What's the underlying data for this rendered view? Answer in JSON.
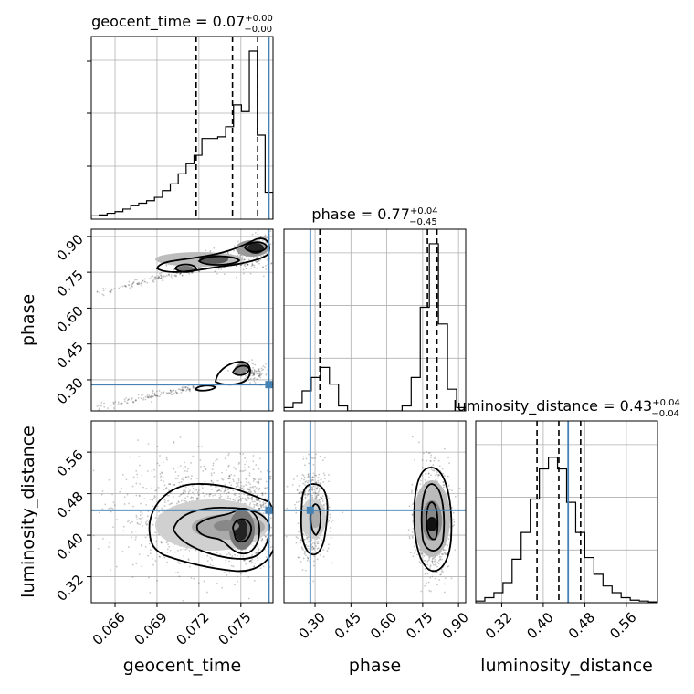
{
  "chart_data": {
    "type": "corner",
    "parameters": [
      {
        "name": "geocent_time",
        "title_value": "0.07",
        "err_plus": "+0.00",
        "err_minus": "−0.00",
        "range": [
          0.0643,
          0.0773
        ],
        "ticks": [
          "0.066",
          "0.069",
          "0.072",
          "0.075"
        ],
        "tick_values": [
          0.066,
          0.069,
          0.072,
          0.075
        ],
        "truth": 0.07715,
        "quantile_lines": [
          0.0718,
          0.0744,
          0.0762
        ],
        "hist_bins": 23,
        "hist_counts": [
          0.02,
          0.025,
          0.035,
          0.045,
          0.06,
          0.08,
          0.095,
          0.11,
          0.13,
          0.17,
          0.21,
          0.27,
          0.33,
          0.38,
          0.48,
          0.48,
          0.49,
          0.55,
          0.68,
          0.64,
          1.0,
          0.5,
          0.16
        ]
      },
      {
        "name": "phase",
        "title_value": "0.77",
        "err_plus": "+0.04",
        "err_minus": "−0.45",
        "range": [
          0.17,
          0.93
        ],
        "ticks": [
          "0.30",
          "0.45",
          "0.60",
          "0.75",
          "0.90"
        ],
        "tick_values": [
          0.3,
          0.45,
          0.6,
          0.75,
          0.9
        ],
        "truth": 0.28,
        "quantile_lines": [
          0.32,
          0.77,
          0.81
        ],
        "hist_bins": 20,
        "hist_counts": [
          0.02,
          0.05,
          0.12,
          0.2,
          0.26,
          0.16,
          0.03,
          0.0,
          0.0,
          0.0,
          0.0,
          0.0,
          0.0,
          0.03,
          0.2,
          0.62,
          1.0,
          0.52,
          0.13,
          0.02
        ]
      },
      {
        "name": "luminosity_distance",
        "title_value": "0.43",
        "err_plus": "+0.04",
        "err_minus": "−0.04",
        "range": [
          0.27,
          0.62
        ],
        "ticks": [
          "0.32",
          "0.40",
          "0.48",
          "0.56"
        ],
        "tick_values": [
          0.32,
          0.4,
          0.48,
          0.56
        ],
        "truth": 0.448,
        "quantile_lines": [
          0.388,
          0.43,
          0.472
        ],
        "hist_bins": 20,
        "hist_counts": [
          0.01,
          0.03,
          0.06,
          0.12,
          0.26,
          0.42,
          0.62,
          0.8,
          0.87,
          0.8,
          0.6,
          0.42,
          0.27,
          0.17,
          0.1,
          0.06,
          0.03,
          0.015,
          0.01,
          0.005
        ]
      }
    ],
    "truth_color": "#4682b4",
    "grid": true
  }
}
